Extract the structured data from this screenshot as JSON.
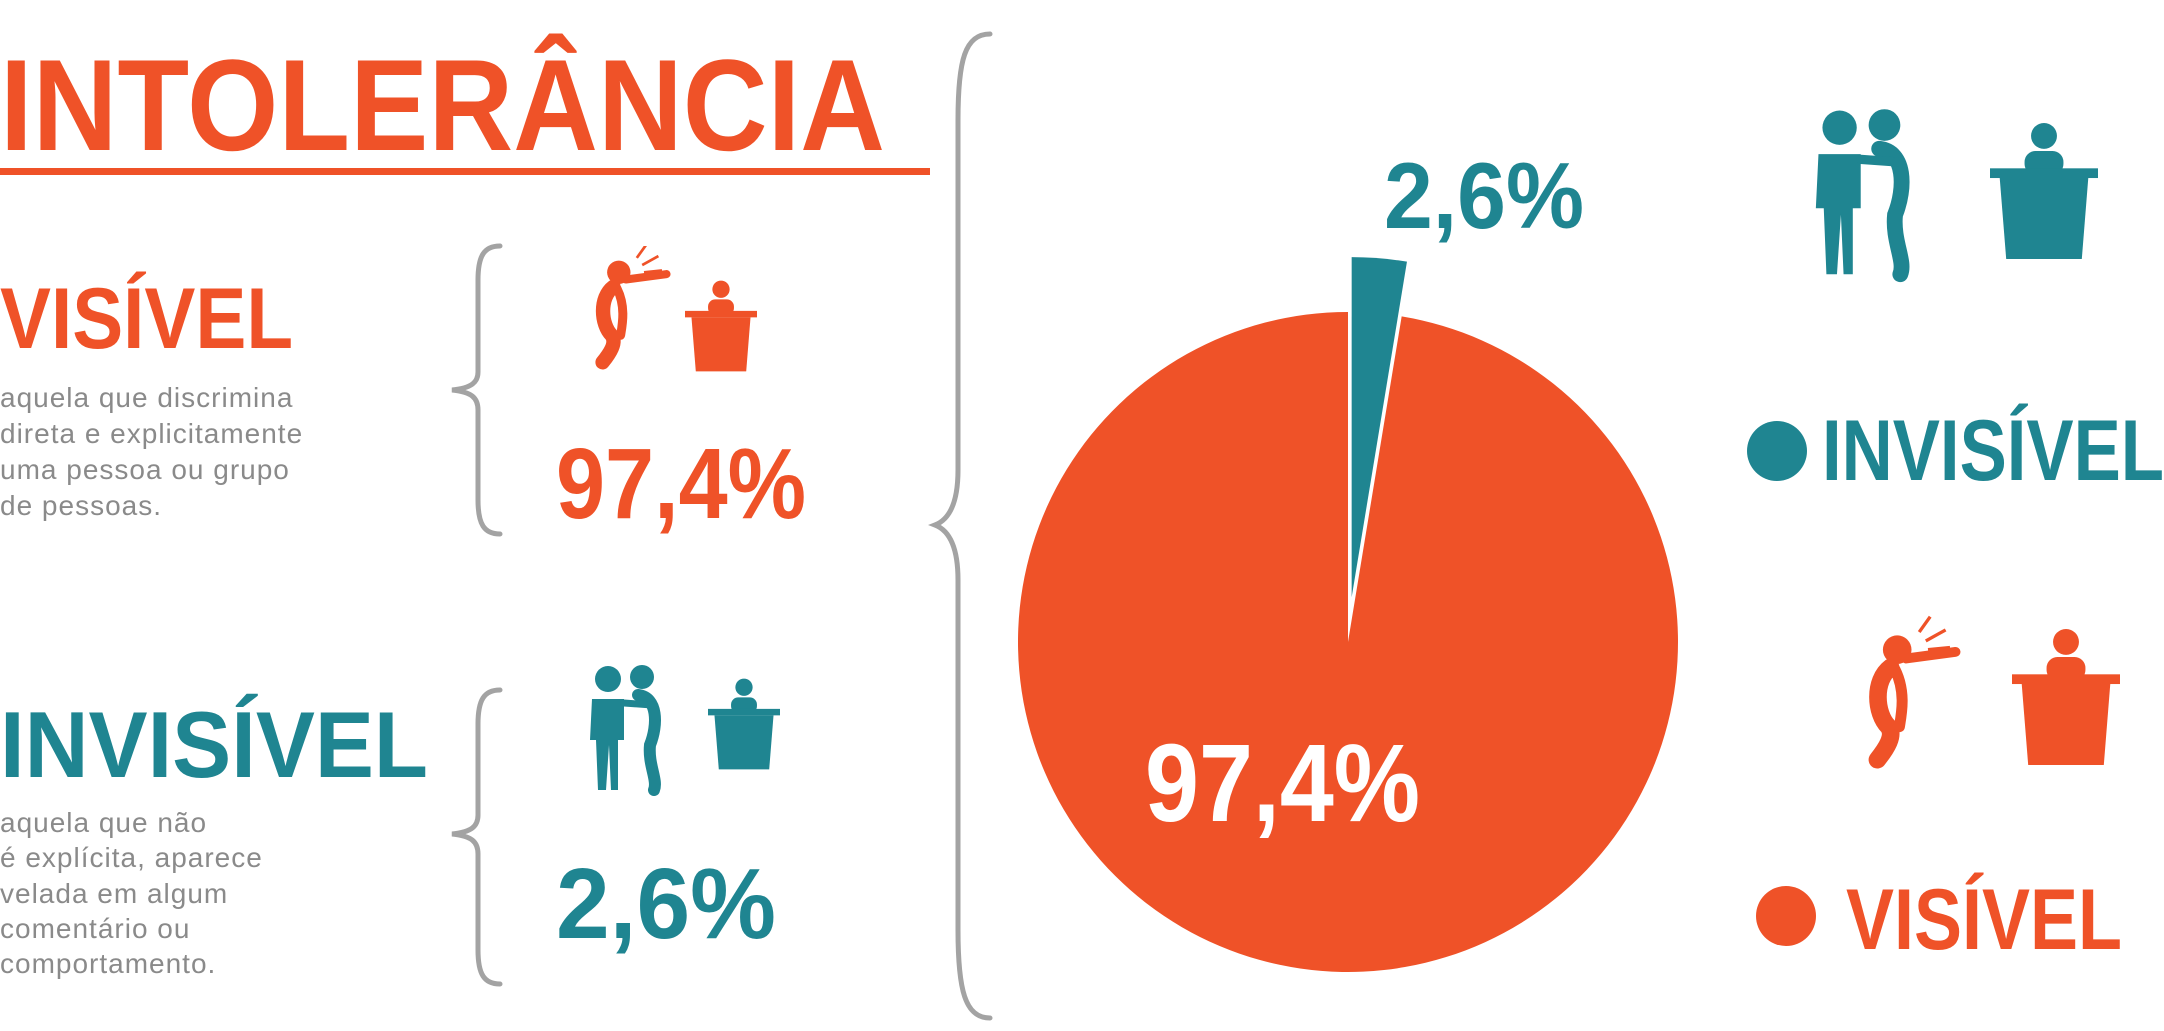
{
  "chart_data": {
    "type": "pie",
    "title": "INTOLERÂNCIA",
    "categories": [
      "VISÍVEL",
      "INVISÍVEL"
    ],
    "values": [
      97.4,
      2.6
    ],
    "value_labels": [
      "97,4%",
      "2,6%"
    ],
    "colors": [
      "#ef5228",
      "#1f8591"
    ]
  },
  "descriptions": [
    [
      "aquela que discrimina",
      "direta e explicitamente",
      "uma pessoa ou grupo",
      "de pessoas."
    ],
    [
      "aquela que não",
      "é explícita, aparece",
      "velada em algum",
      "comentário ou",
      "comportamento."
    ]
  ]
}
